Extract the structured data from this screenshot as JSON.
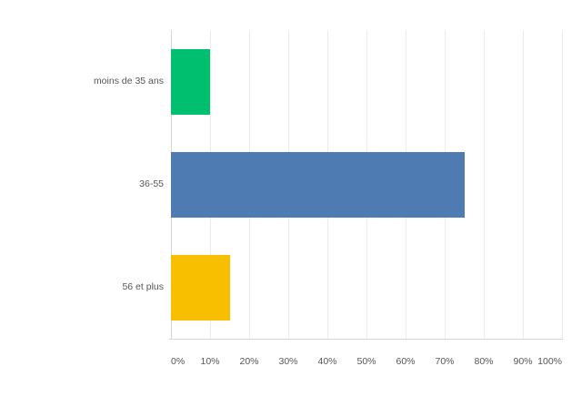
{
  "chart_data": {
    "type": "bar",
    "orientation": "horizontal",
    "title": "",
    "xlabel": "",
    "ylabel": "",
    "categories": [
      "moins de 35 ans",
      "36-55",
      "56 et plus"
    ],
    "values": [
      10,
      75,
      15
    ],
    "value_unit": "%",
    "bar_colors": [
      "#00BF6F",
      "#4E7CB2",
      "#F8BE00"
    ],
    "xlim": [
      0,
      100
    ],
    "x_ticks": [
      0,
      10,
      20,
      30,
      40,
      50,
      60,
      70,
      80,
      90,
      100
    ],
    "x_tick_labels": [
      "0%",
      "10%",
      "20%",
      "30%",
      "40%",
      "50%",
      "60%",
      "70%",
      "80%",
      "90%",
      "100%"
    ],
    "grid": "vertical-only",
    "legend": "none"
  },
  "colors": {
    "background": "#ffffff",
    "gridline": "#ececec",
    "zero_line": "#d4d4d4",
    "axis_line": "#d6d6d6",
    "label_text": "#54565a"
  }
}
